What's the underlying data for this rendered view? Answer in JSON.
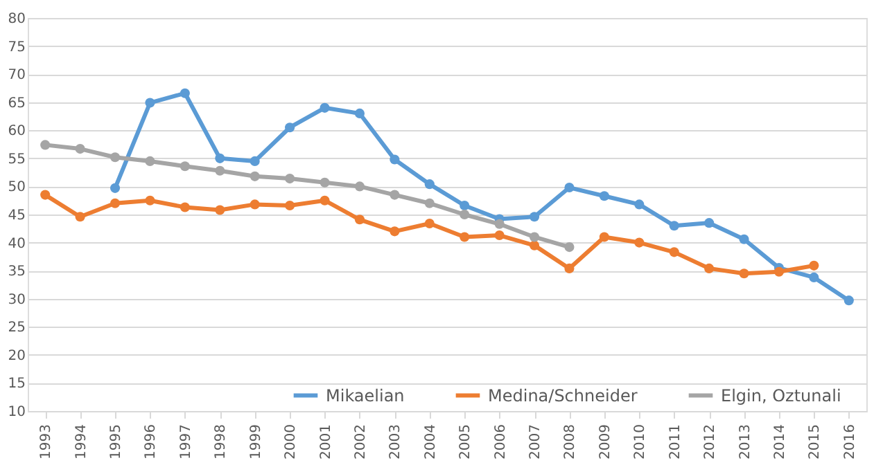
{
  "chart_data": {
    "type": "line",
    "categories": [
      "1993",
      "1994",
      "1995",
      "1996",
      "1997",
      "1998",
      "1999",
      "2000",
      "2001",
      "2002",
      "2003",
      "2004",
      "2005",
      "2006",
      "2007",
      "2008",
      "2009",
      "2010",
      "2011",
      "2012",
      "2013",
      "2014",
      "2015",
      "2016"
    ],
    "series": [
      {
        "name": "Mikaelian",
        "color": "#5b9bd5",
        "values": [
          null,
          null,
          49.7,
          64.9,
          66.6,
          55,
          54.5,
          60.5,
          64,
          63,
          54.8,
          50.4,
          46.6,
          44.2,
          44.6,
          49.8,
          48.3,
          46.8,
          43,
          43.5,
          40.6,
          35.5,
          33.8,
          29.7
        ]
      },
      {
        "name": "Medina/Schneider",
        "color": "#ed7d31",
        "values": [
          48.5,
          44.6,
          47,
          47.5,
          46.3,
          45.8,
          46.8,
          46.6,
          47.5,
          44.1,
          42,
          43.4,
          41,
          41.3,
          39.5,
          35.4,
          41,
          40,
          38.3,
          35.4,
          34.5,
          34.8,
          35.9,
          null
        ]
      },
      {
        "name": "Elgin, Oztunali",
        "color": "#a5a5a5",
        "values": [
          57.4,
          56.7,
          55.2,
          54.5,
          53.6,
          52.8,
          51.8,
          51.4,
          50.7,
          50,
          48.5,
          47,
          45,
          43.3,
          41,
          39.2,
          null,
          null,
          null,
          null,
          null,
          null,
          null,
          null
        ]
      }
    ],
    "ylim": [
      10,
      80
    ],
    "yticks": [
      10,
      15,
      20,
      25,
      30,
      35,
      40,
      45,
      50,
      55,
      60,
      65,
      70,
      75,
      80
    ],
    "grid": "y",
    "legend": "bottom",
    "marker": "circle",
    "line_style": "solid"
  }
}
